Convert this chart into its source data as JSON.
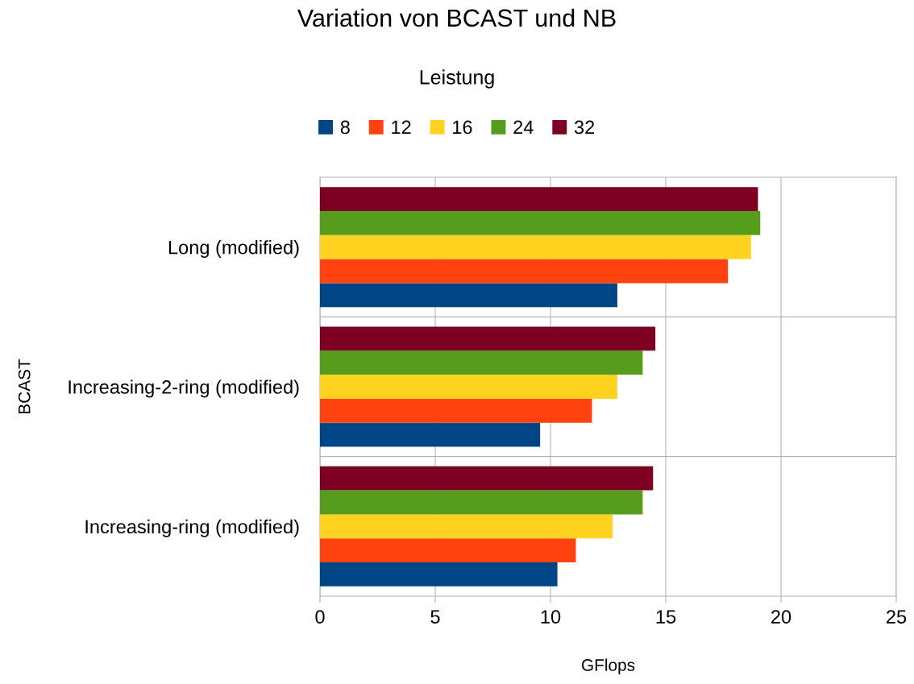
{
  "chart_data": {
    "type": "bar",
    "orientation": "horizontal",
    "title": "Variation von BCAST und NB",
    "subtitle": "Leistung",
    "xlabel": "GFlops",
    "ylabel": "BCAST",
    "categories": [
      "Long (modified)",
      "Increasing-2-ring (modified)",
      "Increasing-ring (modified)"
    ],
    "series": [
      {
        "name": "8",
        "color": "#004586",
        "values": [
          12.9,
          9.55,
          10.3
        ]
      },
      {
        "name": "12",
        "color": "#ff420e",
        "values": [
          17.7,
          11.8,
          11.1
        ]
      },
      {
        "name": "16",
        "color": "#ffd320",
        "values": [
          18.7,
          12.9,
          12.7
        ]
      },
      {
        "name": "24",
        "color": "#579d1c",
        "values": [
          19.1,
          14.0,
          14.0
        ]
      },
      {
        "name": "32",
        "color": "#7e0021",
        "values": [
          19.0,
          14.55,
          14.45
        ]
      }
    ],
    "xlim": [
      0,
      25
    ],
    "xticks": [
      0,
      5,
      10,
      15,
      20,
      25
    ],
    "grid": true,
    "legend": "top"
  }
}
